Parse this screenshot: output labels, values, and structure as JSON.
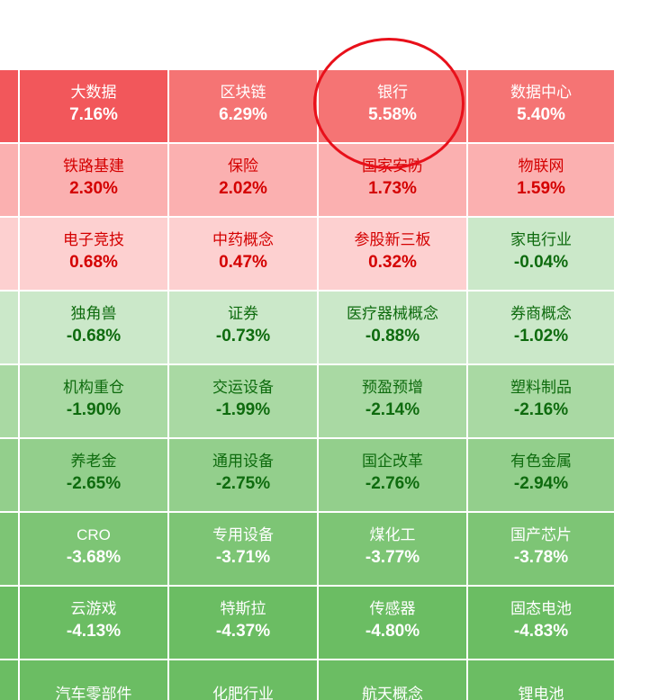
{
  "colors": {
    "strong_red": "#f2575b",
    "red": "#f57474",
    "mid_red": "#fbb0b0",
    "light_red": "#fdd0d0",
    "light_green": "#cbe8c9",
    "green": "#a9d9a3",
    "mid_green": "#93cf8c",
    "deep_green": "#7dc575",
    "deeper_green": "#6bbd63",
    "annotation": "#e8101a"
  },
  "heatmap": {
    "rows": [
      [
        {
          "name": "",
          "pct": ""
        },
        {
          "name": "大数据",
          "pct": "7.16%"
        },
        {
          "name": "区块链",
          "pct": "6.29%"
        },
        {
          "name": "银行",
          "pct": "5.58%"
        },
        {
          "name": "数据中心",
          "pct": "5.40%"
        }
      ],
      [
        {
          "name": "",
          "pct": ""
        },
        {
          "name": "铁路基建",
          "pct": "2.30%"
        },
        {
          "name": "保险",
          "pct": "2.02%"
        },
        {
          "name": "国家安防",
          "pct": "1.73%"
        },
        {
          "name": "物联网",
          "pct": "1.59%"
        }
      ],
      [
        {
          "name": "",
          "pct": ""
        },
        {
          "name": "电子竞技",
          "pct": "0.68%"
        },
        {
          "name": "中药概念",
          "pct": "0.47%"
        },
        {
          "name": "参股新三板",
          "pct": "0.32%"
        },
        {
          "name": "家电行业",
          "pct": "-0.04%"
        }
      ],
      [
        {
          "name": "",
          "pct": ""
        },
        {
          "name": "独角兽",
          "pct": "-0.68%"
        },
        {
          "name": "证券",
          "pct": "-0.73%"
        },
        {
          "name": "医疗器械概念",
          "pct": "-0.88%"
        },
        {
          "name": "券商概念",
          "pct": "-1.02%"
        }
      ],
      [
        {
          "name": "",
          "pct": ""
        },
        {
          "name": "机构重仓",
          "pct": "-1.90%"
        },
        {
          "name": "交运设备",
          "pct": "-1.99%"
        },
        {
          "name": "预盈预增",
          "pct": "-2.14%"
        },
        {
          "name": "塑料制品",
          "pct": "-2.16%"
        }
      ],
      [
        {
          "name": "",
          "pct": ""
        },
        {
          "name": "养老金",
          "pct": "-2.65%"
        },
        {
          "name": "通用设备",
          "pct": "-2.75%"
        },
        {
          "name": "国企改革",
          "pct": "-2.76%"
        },
        {
          "name": "有色金属",
          "pct": "-2.94%"
        }
      ],
      [
        {
          "name": "",
          "pct": ""
        },
        {
          "name": "CRO",
          "pct": "-3.68%"
        },
        {
          "name": "专用设备",
          "pct": "-3.71%"
        },
        {
          "name": "煤化工",
          "pct": "-3.77%"
        },
        {
          "name": "国产芯片",
          "pct": "-3.78%"
        }
      ],
      [
        {
          "name": "",
          "pct": ""
        },
        {
          "name": "云游戏",
          "pct": "-4.13%"
        },
        {
          "name": "特斯拉",
          "pct": "-4.37%"
        },
        {
          "name": "传感器",
          "pct": "-4.80%"
        },
        {
          "name": "固态电池",
          "pct": "-4.83%"
        }
      ],
      [
        {
          "name": "",
          "pct": ""
        },
        {
          "name": "汽车零部件",
          "pct": ""
        },
        {
          "name": "化肥行业",
          "pct": ""
        },
        {
          "name": "航天概念",
          "pct": ""
        },
        {
          "name": "锂电池",
          "pct": ""
        }
      ]
    ]
  }
}
